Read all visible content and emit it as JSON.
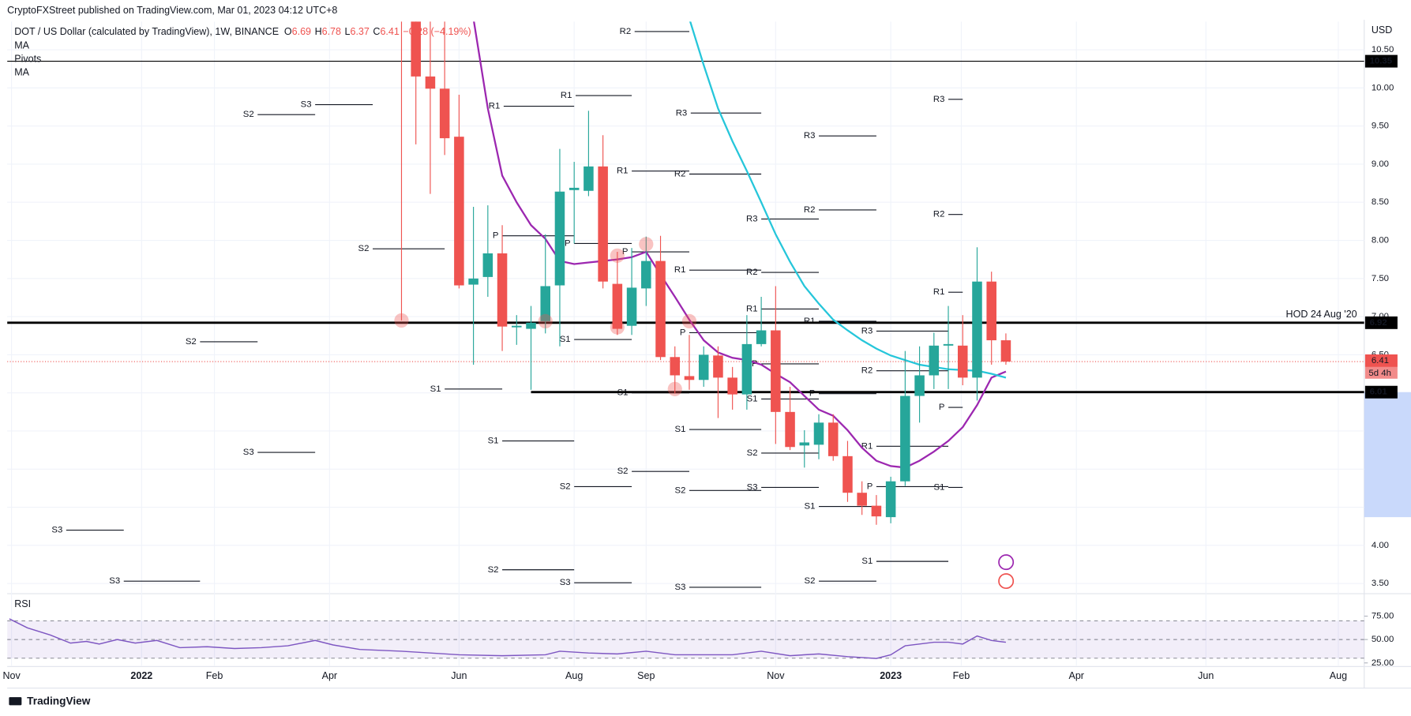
{
  "chart_data": {
    "type": "candlestick",
    "header": "CryptoFXStreet published on TradingView.com, Mar 01, 2023 04:12 UTC+8",
    "title": "DOT / US Dollar (calculated by TradingView), 1W, BINANCE",
    "ohlc": [
      {
        "key": "O",
        "value": 6.69
      },
      {
        "key": "H",
        "value": 6.78
      },
      {
        "key": "L",
        "value": 6.37
      },
      {
        "key": "C",
        "value": 6.41
      }
    ],
    "change": {
      "value": -0.28,
      "pct": -4.19,
      "label": "−0.28 (−4.19%)"
    },
    "legend": [
      "MA",
      "Pivots",
      "MA"
    ],
    "currency": "USD",
    "footer": "TradingView",
    "up_color": "#26a69a",
    "down_color": "#ef5350",
    "grid": true,
    "xlim": [
      -27.4,
      66.9
    ],
    "xticks": [
      {
        "value": -27.1,
        "label": "Nov"
      },
      {
        "value": -18.06,
        "label": "2022",
        "year": true
      },
      {
        "value": -13,
        "label": "Feb"
      },
      {
        "value": -5,
        "label": "Apr"
      },
      {
        "value": 4,
        "label": "Jun"
      },
      {
        "value": 12,
        "label": "Aug"
      },
      {
        "value": 17,
        "label": "Sep"
      },
      {
        "value": 26,
        "label": "Nov"
      },
      {
        "value": 34,
        "label": "2023",
        "year": true
      },
      {
        "value": 38.9,
        "label": "Feb"
      },
      {
        "value": 46.9,
        "label": "Apr"
      },
      {
        "value": 55.9,
        "label": "Jun"
      },
      {
        "value": 65.1,
        "label": "Aug"
      }
    ],
    "ylim": [
      3.39,
      10.87
    ],
    "yticks": [
      {
        "value": 3.5,
        "label": "3.50"
      },
      {
        "value": 4,
        "label": "4.00"
      },
      {
        "value": 4.5,
        "label": "4.50"
      },
      {
        "value": 5,
        "label": "5.00"
      },
      {
        "value": 5.5,
        "label": "5.50"
      },
      {
        "value": 6,
        "label": "6.00"
      },
      {
        "value": 6.5,
        "label": "6.50"
      },
      {
        "value": 7,
        "label": "7.00"
      },
      {
        "value": 7.5,
        "label": "7.50"
      },
      {
        "value": 8,
        "label": "8.00"
      },
      {
        "value": 8.5,
        "label": "8.50"
      },
      {
        "value": 9,
        "label": "9.00"
      },
      {
        "value": 9.5,
        "label": "9.50"
      },
      {
        "value": 10,
        "label": "10.00"
      },
      {
        "value": 10.5,
        "label": "10.50"
      }
    ],
    "candles": {
      "x": [
        0,
        1,
        2,
        3,
        4,
        5,
        6,
        7,
        8,
        9,
        10,
        11,
        12,
        13,
        14,
        15,
        16,
        17,
        18,
        19,
        20,
        21,
        22,
        23,
        24,
        25,
        26,
        27,
        28,
        29,
        30,
        31,
        32,
        33,
        34,
        35,
        36,
        37,
        38,
        39,
        40,
        41,
        42
      ],
      "open": [
        11.6,
        10.93,
        10.15,
        9.99,
        9.36,
        7.42,
        7.52,
        7.83,
        6.86,
        6.84,
        6.94,
        7.41,
        8.66,
        8.65,
        8.97,
        7.43,
        6.88,
        7.37,
        7.73,
        6.47,
        6.22,
        6.17,
        6.49,
        6.2,
        5.98,
        6.64,
        6.82,
        5.75,
        5.31,
        5.32,
        5.61,
        5.17,
        4.69,
        4.52,
        4.37,
        4.84,
        5.96,
        6.23,
        6.62,
        6.62,
        6.2,
        7.46,
        6.69
      ],
      "high": [
        11.8,
        11.0,
        10.91,
        10.91,
        9.91,
        8.44,
        8.46,
        8.2,
        7.02,
        7.14,
        8.08,
        9.2,
        9.03,
        9.7,
        9.38,
        7.85,
        7.9,
        8.05,
        8.06,
        6.61,
        6.76,
        6.61,
        6.61,
        6.34,
        7.02,
        7.26,
        7.4,
        6.08,
        5.51,
        5.72,
        5.72,
        5.37,
        4.84,
        4.66,
        4.9,
        6.55,
        6.61,
        6.79,
        7.14,
        7.02,
        7.91,
        7.59,
        6.78
      ],
      "low": [
        6.95,
        9.26,
        8.61,
        9.12,
        7.37,
        6.37,
        7.26,
        6.55,
        6.63,
        6.04,
        6.78,
        6.61,
        7.96,
        8.58,
        7.37,
        6.76,
        6.76,
        7.14,
        6.43,
        5.99,
        6.04,
        6.08,
        5.67,
        5.78,
        5.78,
        6.61,
        5.33,
        5.25,
        5.02,
        5.13,
        5.11,
        4.57,
        4.4,
        4.27,
        4.29,
        4.78,
        5.61,
        6.05,
        6.05,
        6.1,
        5.9,
        6.37,
        6.37
      ],
      "close": [
        11.0,
        10.15,
        9.99,
        9.34,
        7.41,
        7.5,
        7.83,
        6.87,
        6.88,
        6.92,
        7.4,
        8.64,
        8.69,
        8.97,
        7.46,
        6.84,
        7.38,
        7.73,
        6.47,
        6.23,
        6.17,
        6.5,
        6.2,
        5.98,
        6.64,
        6.82,
        5.75,
        5.29,
        5.35,
        5.61,
        5.17,
        4.69,
        4.52,
        4.38,
        4.84,
        5.96,
        6.23,
        6.62,
        6.64,
        6.2,
        7.46,
        6.69,
        6.41
      ]
    },
    "series": [
      {
        "color": "#9c27b0",
        "x": [
          5,
          6,
          7,
          8,
          9,
          10,
          11,
          12,
          13,
          14,
          15,
          16,
          17,
          18,
          19,
          20,
          21,
          22,
          23,
          24,
          25,
          26,
          27,
          28,
          29,
          30,
          31,
          32,
          33,
          34,
          35,
          36,
          37,
          38,
          39,
          40,
          41,
          42
        ],
        "values": [
          10.91,
          9.73,
          8.85,
          8.5,
          8.2,
          8.02,
          7.73,
          7.69,
          7.71,
          7.73,
          7.75,
          7.78,
          7.85,
          7.55,
          7.26,
          6.96,
          6.69,
          6.53,
          6.46,
          6.43,
          6.37,
          6.25,
          6.14,
          5.96,
          5.78,
          5.7,
          5.51,
          5.28,
          5.11,
          5.04,
          5.02,
          5.11,
          5.23,
          5.37,
          5.55,
          5.84,
          6.2,
          6.28
        ]
      },
      {
        "color": "#26c6da",
        "x": [
          20,
          21,
          22,
          23,
          24,
          25,
          26,
          27,
          28,
          29,
          30,
          31,
          32,
          33,
          34,
          35,
          36,
          37,
          38,
          39,
          40,
          41,
          42
        ],
        "values": [
          10.91,
          10.3,
          9.73,
          9.3,
          8.91,
          8.5,
          8.08,
          7.72,
          7.4,
          7.17,
          6.96,
          6.82,
          6.69,
          6.58,
          6.49,
          6.43,
          6.37,
          6.34,
          6.31,
          6.3,
          6.29,
          6.25,
          6.2
        ]
      }
    ],
    "hlines": [
      {
        "value": 10.35,
        "width": 1
      },
      {
        "value": 6.92,
        "width": 2.5,
        "label": "HOD 24 Aug '20"
      },
      {
        "value": 6.01,
        "width": 2.5,
        "from": 9
      }
    ],
    "last_price": 6.41,
    "countdown": "5d 4h",
    "price_range_highlight": [
      4.37,
      6.01
    ],
    "touch_points": [
      {
        "x": 0,
        "y": 6.95
      },
      {
        "x": 10,
        "y": 6.94
      },
      {
        "x": 15,
        "y": 7.8
      },
      {
        "x": 17,
        "y": 7.95
      },
      {
        "x": 15,
        "y": 6.86
      },
      {
        "x": 19,
        "y": 6.05
      },
      {
        "x": 20,
        "y": 6.94
      }
    ],
    "pivots": [
      {
        "label": "R2",
        "value": 10.74,
        "from": 16.2,
        "to": 20
      },
      {
        "label": "R1",
        "value": 9.9,
        "from": 12.1,
        "to": 16
      },
      {
        "label": "R1",
        "value": 9.76,
        "from": 7.1,
        "to": 12
      },
      {
        "label": "S3",
        "value": 9.78,
        "from": -6,
        "to": -2
      },
      {
        "label": "S2",
        "value": 9.65,
        "from": -10,
        "to": -6
      },
      {
        "label": "R3",
        "value": 9.67,
        "from": 20.1,
        "to": 25
      },
      {
        "label": "R3",
        "value": 9.37,
        "from": 29,
        "to": 33
      },
      {
        "label": "R3",
        "value": 9.85,
        "from": 38,
        "to": 39
      },
      {
        "label": "R1",
        "value": 8.91,
        "from": 16,
        "to": 20
      },
      {
        "label": "R2",
        "value": 8.87,
        "from": 20,
        "to": 25
      },
      {
        "label": "R2",
        "value": 8.4,
        "from": 29,
        "to": 33
      },
      {
        "label": "R3",
        "value": 8.28,
        "from": 25,
        "to": 29
      },
      {
        "label": "R2",
        "value": 8.34,
        "from": 38,
        "to": 39
      },
      {
        "label": "S2",
        "value": 7.89,
        "from": -2,
        "to": 3
      },
      {
        "label": "P",
        "value": 8.06,
        "from": 7,
        "to": 12
      },
      {
        "label": "P",
        "value": 7.96,
        "from": 12,
        "to": 16
      },
      {
        "label": "P",
        "value": 7.85,
        "from": 16,
        "to": 20
      },
      {
        "label": "R1",
        "value": 7.61,
        "from": 20,
        "to": 25
      },
      {
        "label": "R2",
        "value": 7.58,
        "from": 25,
        "to": 29
      },
      {
        "label": "R1",
        "value": 7.32,
        "from": 38,
        "to": 39
      },
      {
        "label": "R1",
        "value": 7.1,
        "from": 25,
        "to": 29
      },
      {
        "label": "R1",
        "value": 6.94,
        "from": 29,
        "to": 33
      },
      {
        "label": "R3",
        "value": 6.81,
        "from": 33,
        "to": 38
      },
      {
        "label": "P",
        "value": 6.79,
        "from": 20,
        "to": 25
      },
      {
        "label": "S1",
        "value": 6.7,
        "from": 12,
        "to": 16
      },
      {
        "label": "S2",
        "value": 6.67,
        "from": -14,
        "to": -10
      },
      {
        "label": "P",
        "value": 6.38,
        "from": 25,
        "to": 29
      },
      {
        "label": "R2",
        "value": 6.29,
        "from": 33,
        "to": 38
      },
      {
        "label": "S1",
        "value": 6.05,
        "from": 3,
        "to": 7
      },
      {
        "label": "S1",
        "value": 6.0,
        "from": 16,
        "to": 20
      },
      {
        "label": "P",
        "value": 5.99,
        "from": 29,
        "to": 33
      },
      {
        "label": "S1",
        "value": 5.92,
        "from": 25,
        "to": 29
      },
      {
        "label": "P",
        "value": 5.81,
        "from": 38,
        "to": 39
      },
      {
        "label": "S1",
        "value": 5.52,
        "from": 20,
        "to": 25
      },
      {
        "label": "S1",
        "value": 5.37,
        "from": 7,
        "to": 12
      },
      {
        "label": "R1",
        "value": 5.3,
        "from": 33,
        "to": 38
      },
      {
        "label": "S3",
        "value": 5.22,
        "from": -10,
        "to": -6
      },
      {
        "label": "S2",
        "value": 5.21,
        "from": 25,
        "to": 29
      },
      {
        "label": "S2",
        "value": 4.97,
        "from": 16,
        "to": 20
      },
      {
        "label": "S2",
        "value": 4.77,
        "from": 12,
        "to": 16
      },
      {
        "label": "P",
        "value": 4.77,
        "from": 33,
        "to": 38
      },
      {
        "label": "S1",
        "value": 4.76,
        "from": 38,
        "to": 39
      },
      {
        "label": "S2",
        "value": 4.72,
        "from": 20,
        "to": 25
      },
      {
        "label": "S3",
        "value": 4.76,
        "from": 25,
        "to": 29
      },
      {
        "label": "S1",
        "value": 4.51,
        "from": 29,
        "to": 33
      },
      {
        "label": "S3",
        "value": 4.2,
        "from": -23.3,
        "to": -19.3
      },
      {
        "label": "S1",
        "value": 3.79,
        "from": 33,
        "to": 38
      },
      {
        "label": "S2",
        "value": 3.68,
        "from": 7,
        "to": 12
      },
      {
        "label": "S3",
        "value": 3.53,
        "from": -19.3,
        "to": -14
      },
      {
        "label": "S2",
        "value": 3.53,
        "from": 29,
        "to": 33
      },
      {
        "label": "S3",
        "value": 3.51,
        "from": 12,
        "to": 16
      },
      {
        "label": "S3",
        "value": 3.45,
        "from": 20,
        "to": 25
      }
    ],
    "rsi": {
      "title": "RSI",
      "color": "#7e57c2",
      "ylim": [
        22.1,
        97.1
      ],
      "band": [
        30,
        70
      ],
      "midline": 50,
      "yticks": [
        {
          "value": 75,
          "label": "75.00"
        },
        {
          "value": 50,
          "label": "50.00"
        },
        {
          "value": 25,
          "label": "25.00"
        }
      ],
      "x": [
        -27.25,
        -26,
        -24.4,
        -23,
        -21.9,
        -21,
        -19.75,
        -18.5,
        -17,
        -15.4,
        -13.5,
        -11.6,
        -9.75,
        -7.9,
        -6,
        -4.75,
        -2.9,
        0,
        4,
        7,
        10,
        11,
        13,
        15,
        17,
        19,
        21,
        23,
        25,
        27,
        29,
        31,
        33,
        34,
        35,
        36,
        37,
        38,
        39,
        40,
        41,
        42
      ],
      "values": [
        72.1,
        62.5,
        54.8,
        46.2,
        48,
        45.2,
        50,
        46.2,
        49,
        41.3,
        42.3,
        40.4,
        41.3,
        43.3,
        49,
        44.2,
        39.4,
        37.5,
        33.7,
        32.7,
        33.7,
        37.5,
        35.6,
        34.6,
        37.5,
        33.7,
        33.7,
        33.7,
        37.5,
        32.7,
        34.6,
        31.7,
        29.8,
        33.7,
        43.3,
        45.2,
        47.1,
        47.1,
        45.2,
        53.8,
        49,
        47.1
      ]
    }
  }
}
